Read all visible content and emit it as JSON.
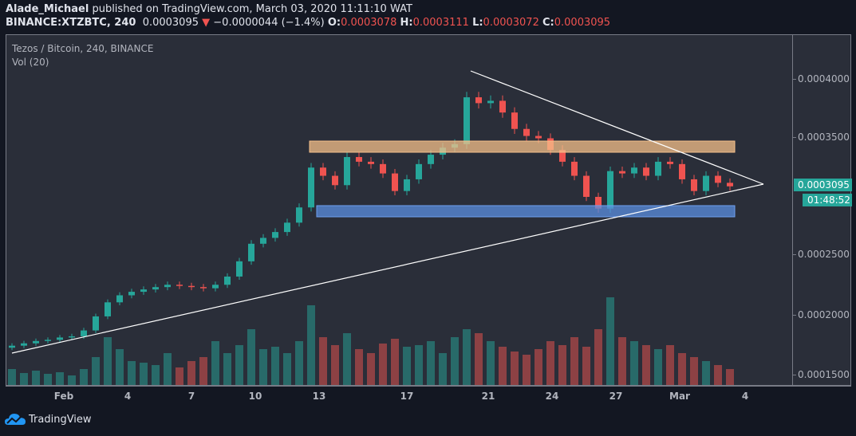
{
  "header": {
    "author": "Alade_Michael",
    "published_text": "published on TradingView.com, March 03, 2020 11:11:10 WAT",
    "symbol": "BINANCE:XTZBTC, 240",
    "last": "0.0003095",
    "change": "−0.0000044 (−1.4%)",
    "o_label": "O:",
    "o": "0.0003078",
    "h_label": "H:",
    "h": "0.0003111",
    "l_label": "L:",
    "l": "0.0003072",
    "c_label": "C:",
    "c": "0.0003095"
  },
  "legend": {
    "title": "Tezos / Bitcoin, 240, BINANCE",
    "volume": "Vol (20)"
  },
  "last_price_label": "0.0003095",
  "countdown": "01:48:52",
  "branding": "TradingView",
  "colors": {
    "up": "#26a69a",
    "down": "#ef5350",
    "resistance_zone": "#f5c08a",
    "support_zone": "#5b8fe0"
  },
  "chart_data": {
    "type": "candlestick",
    "title": "Tezos / Bitcoin, 240, BINANCE",
    "y_ticks": [
      "0.0004000",
      "0.0003500",
      "0.0002500",
      "0.0002000",
      "0.0001500"
    ],
    "y_tick_values": [
      0.0004,
      0.00035,
      0.00025,
      0.0002,
      0.00015
    ],
    "x_ticks": [
      "Feb",
      "4",
      "7",
      "10",
      "13",
      "17",
      "21",
      "24",
      "27",
      "Mar",
      "4"
    ],
    "ylim": [
      0.000141,
      0.000428
    ],
    "closes": [
      0.000173,
      0.000175,
      0.000177,
      0.000178,
      0.00018,
      0.000181,
      0.000186,
      0.000198,
      0.00021,
      0.000216,
      0.000219,
      0.000221,
      0.000223,
      0.000225,
      0.000224,
      0.000223,
      0.000222,
      0.000225,
      0.000232,
      0.000245,
      0.00026,
      0.000265,
      0.00027,
      0.000278,
      0.000291,
      0.000325,
      0.000318,
      0.00031,
      0.000334,
      0.00033,
      0.000328,
      0.00032,
      0.000305,
      0.000315,
      0.000328,
      0.000336,
      0.000342,
      0.000345,
      0.000385,
      0.00038,
      0.000382,
      0.000372,
      0.000358,
      0.000352,
      0.00035,
      0.00034,
      0.00033,
      0.000318,
      0.0003,
      0.00029,
      0.000322,
      0.00032,
      0.000325,
      0.000318,
      0.00033,
      0.000328,
      0.000315,
      0.000305,
      0.000318,
      0.000312,
      0.000309
    ],
    "volumes": [
      20,
      15,
      18,
      14,
      16,
      12,
      20,
      35,
      60,
      45,
      30,
      28,
      25,
      40,
      22,
      30,
      35,
      55,
      40,
      50,
      70,
      45,
      48,
      40,
      55,
      100,
      60,
      50,
      65,
      45,
      40,
      52,
      58,
      48,
      50,
      55,
      40,
      60,
      70,
      65,
      55,
      48,
      42,
      38,
      45,
      55,
      50,
      60,
      48,
      70,
      110,
      60,
      55,
      50,
      45,
      50,
      40,
      35,
      30,
      25,
      20
    ],
    "resistance_zone": [
      0.000338,
      0.000347
    ],
    "support_zone": [
      0.000284,
      0.000293
    ]
  }
}
